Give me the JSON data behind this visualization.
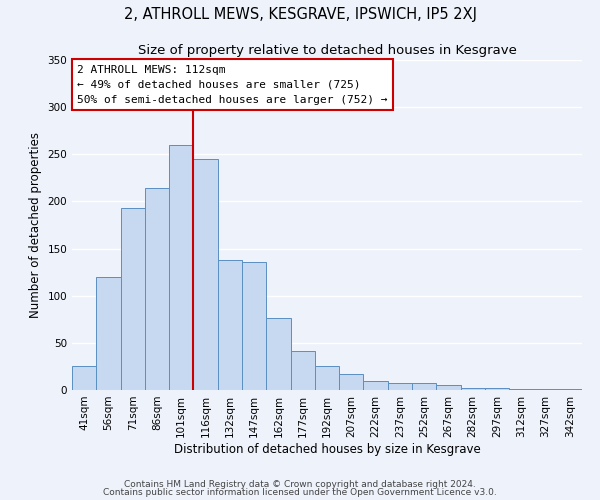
{
  "title": "2, ATHROLL MEWS, KESGRAVE, IPSWICH, IP5 2XJ",
  "subtitle": "Size of property relative to detached houses in Kesgrave",
  "xlabel": "Distribution of detached houses by size in Kesgrave",
  "ylabel": "Number of detached properties",
  "bar_labels": [
    "41sqm",
    "56sqm",
    "71sqm",
    "86sqm",
    "101sqm",
    "116sqm",
    "132sqm",
    "147sqm",
    "162sqm",
    "177sqm",
    "192sqm",
    "207sqm",
    "222sqm",
    "237sqm",
    "252sqm",
    "267sqm",
    "282sqm",
    "297sqm",
    "312sqm",
    "327sqm",
    "342sqm"
  ],
  "bar_values": [
    25,
    120,
    193,
    214,
    260,
    245,
    138,
    136,
    76,
    41,
    25,
    17,
    10,
    7,
    7,
    5,
    2,
    2,
    1,
    1,
    1
  ],
  "bar_color": "#c6d9f0",
  "bar_edge_color": "#5a8fc3",
  "vline_x_index": 5,
  "vline_color": "#cc0000",
  "annotation_text": "2 ATHROLL MEWS: 112sqm\n← 49% of detached houses are smaller (725)\n50% of semi-detached houses are larger (752) →",
  "annotation_box_color": "#ffffff",
  "annotation_box_edge_color": "#cc0000",
  "ylim": [
    0,
    350
  ],
  "yticks": [
    0,
    50,
    100,
    150,
    200,
    250,
    300,
    350
  ],
  "footer_line1": "Contains HM Land Registry data © Crown copyright and database right 2024.",
  "footer_line2": "Contains public sector information licensed under the Open Government Licence v3.0.",
  "background_color": "#eef2fb",
  "grid_color": "#ffffff",
  "title_fontsize": 10.5,
  "subtitle_fontsize": 9.5,
  "axis_label_fontsize": 8.5,
  "tick_fontsize": 7.5,
  "annotation_fontsize": 8.0,
  "footer_fontsize": 6.5
}
